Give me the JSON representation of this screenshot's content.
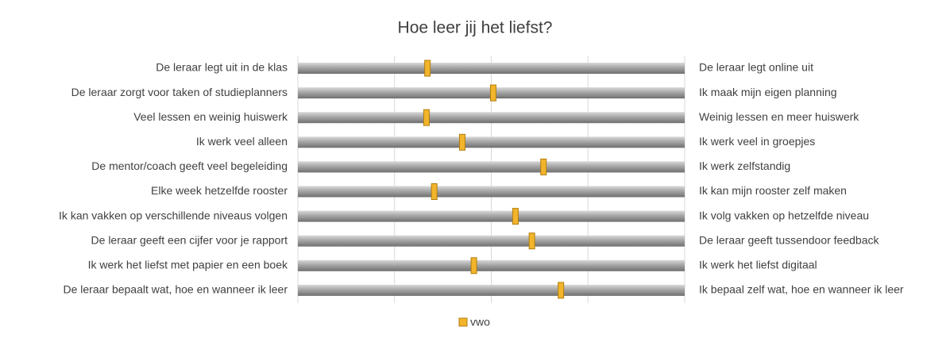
{
  "chart_data": {
    "type": "differential",
    "title": "Hoe leer jij het liefst?",
    "categories": [
      "De leraar legt uit in de klas",
      "De leraar zorgt voor taken of studieplanners",
      "Veel lessen en weinig huiswerk",
      "Ik werk veel alleen",
      "De mentor/coach geeft veel begeleiding",
      "Elke week hetzelfde rooster",
      "Ik kan vakken op verschillende niveaus volgen",
      "De leraar geeft een cijfer voor je rapport",
      "Ik werk het liefst met papier en een boek",
      "De leraar bepaalt wat, hoe en wanneer ik leer"
    ],
    "categories_right": [
      "De leraar legt online uit",
      "Ik maak mijn eigen planning",
      "Weinig lessen en meer huiswerk",
      "Ik werk veel in groepjes",
      "Ik werk zelfstandig",
      "Ik kan mijn rooster zelf maken",
      "Ik volg vakken op hetzelfde niveau",
      "De leraar geeft tussendoor feedback",
      "Ik werk het liefst digitaal",
      "Ik bepaal zelf wat, hoe en wanneer ik leer"
    ],
    "series": [
      {
        "name": "vwo",
        "color": "#f2b42a",
        "values": [
          2.34,
          3.02,
          2.33,
          2.7,
          3.54,
          2.41,
          3.25,
          3.42,
          2.82,
          3.72
        ]
      }
    ],
    "xlim": [
      1,
      5
    ],
    "xticks": [
      1,
      2,
      3,
      4,
      5
    ],
    "grid": true,
    "legend": "bottom"
  }
}
